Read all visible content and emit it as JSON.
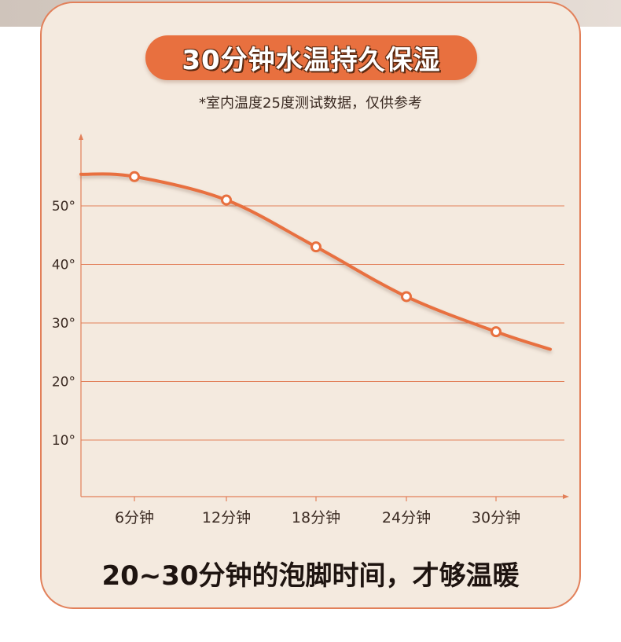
{
  "header": {
    "title": "30分钟水温持久保湿",
    "note": "*室内温度25度测试数据，仅供参考"
  },
  "footer": {
    "text": "20~30分钟的泡脚时间，才够温暖"
  },
  "colors": {
    "accent": "#e8703f",
    "card_bg": "#f4eadf",
    "grid": "#e2805a"
  },
  "chart_data": {
    "type": "line",
    "x": [
      "6分钟",
      "12分钟",
      "18分钟",
      "24分钟",
      "30分钟"
    ],
    "y_ticks": [
      "10°",
      "20°",
      "30°",
      "40°",
      "50°"
    ],
    "y_tick_values": [
      10,
      20,
      30,
      40,
      50
    ],
    "ylim": [
      0,
      60
    ],
    "points": [
      {
        "x": "6分钟",
        "y": 55
      },
      {
        "x": "12分钟",
        "y": 51
      },
      {
        "x": "18分钟",
        "y": 43
      },
      {
        "x": "24分钟",
        "y": 34.5
      },
      {
        "x": "30分钟",
        "y": 28.5
      }
    ],
    "grid": true,
    "title": "",
    "xlabel": "",
    "ylabel": ""
  }
}
